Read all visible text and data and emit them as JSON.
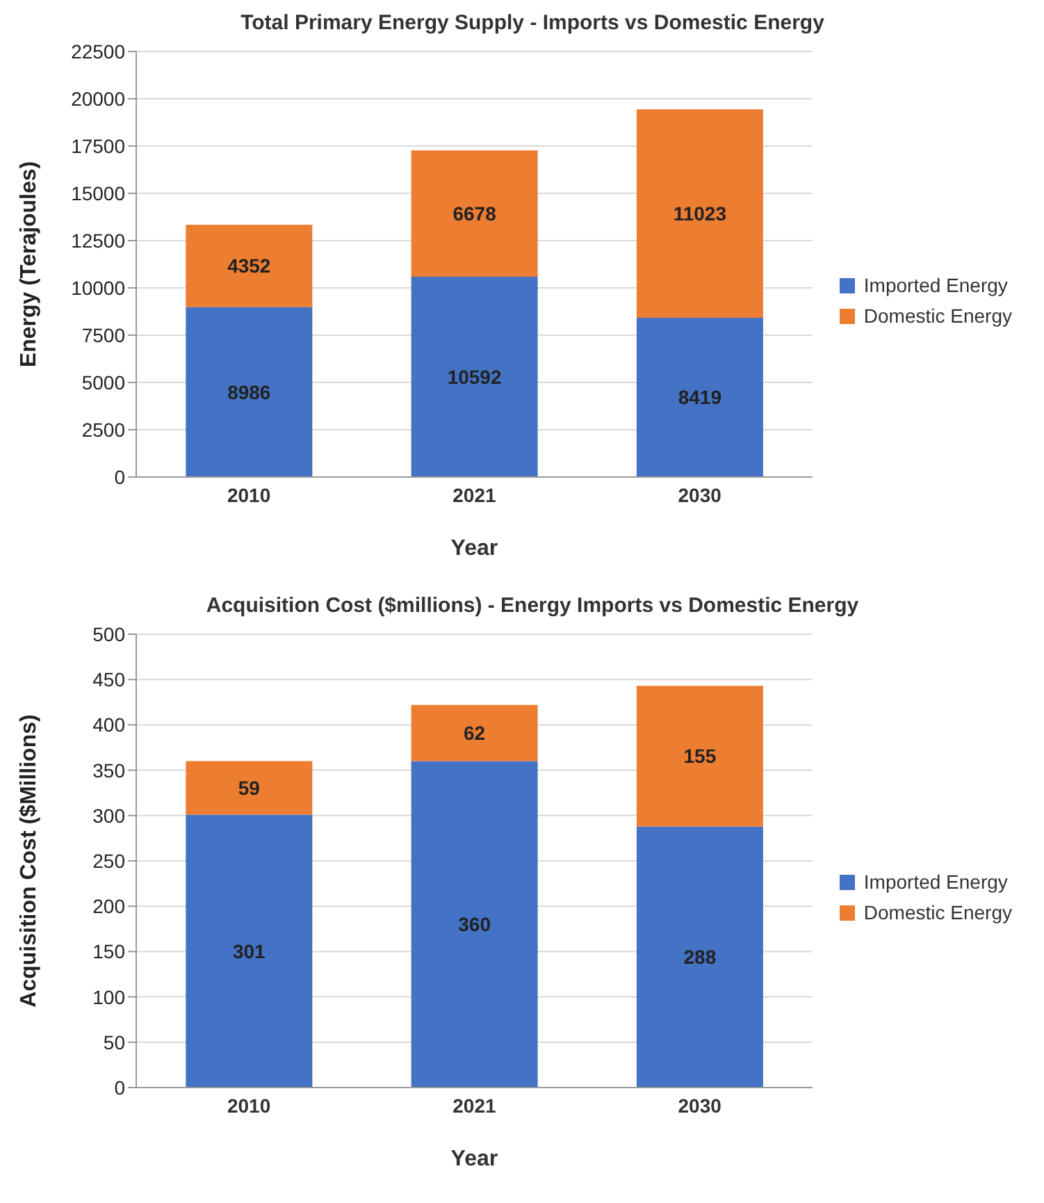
{
  "chart_data": [
    {
      "type": "bar",
      "title": "Total Primary Energy Supply - Imports vs Domestic Energy",
      "xlabel": "Year",
      "ylabel": "Energy (Terajoules)",
      "categories": [
        "2010",
        "2021",
        "2030"
      ],
      "series": [
        {
          "name": "Imported Energy",
          "color": "#4472c4",
          "values": [
            8986,
            10592,
            8419
          ]
        },
        {
          "name": "Domestic Energy",
          "color": "#ed7d31",
          "values": [
            4352,
            6678,
            11023
          ]
        }
      ],
      "stacked": true,
      "data_labels": true,
      "ylim": [
        0,
        22500
      ],
      "yticks": [
        0,
        2500,
        5000,
        7500,
        10000,
        12500,
        15000,
        17500,
        20000,
        22500
      ],
      "grid": "y",
      "legend": "right"
    },
    {
      "type": "bar",
      "title": "Acquisition Cost ($millions) - Energy Imports vs Domestic Energy",
      "xlabel": "Year",
      "ylabel": "Acquisition Cost ($Millions)",
      "categories": [
        "2010",
        "2021",
        "2030"
      ],
      "series": [
        {
          "name": "Imported Energy",
          "color": "#4472c4",
          "values": [
            301,
            360,
            288
          ]
        },
        {
          "name": "Domestic Energy",
          "color": "#ed7d31",
          "values": [
            59,
            62,
            155
          ]
        }
      ],
      "stacked": true,
      "data_labels": true,
      "ylim": [
        0,
        500
      ],
      "yticks": [
        0,
        50,
        100,
        150,
        200,
        250,
        300,
        350,
        400,
        450,
        500
      ],
      "grid": "y",
      "legend": "right"
    }
  ]
}
